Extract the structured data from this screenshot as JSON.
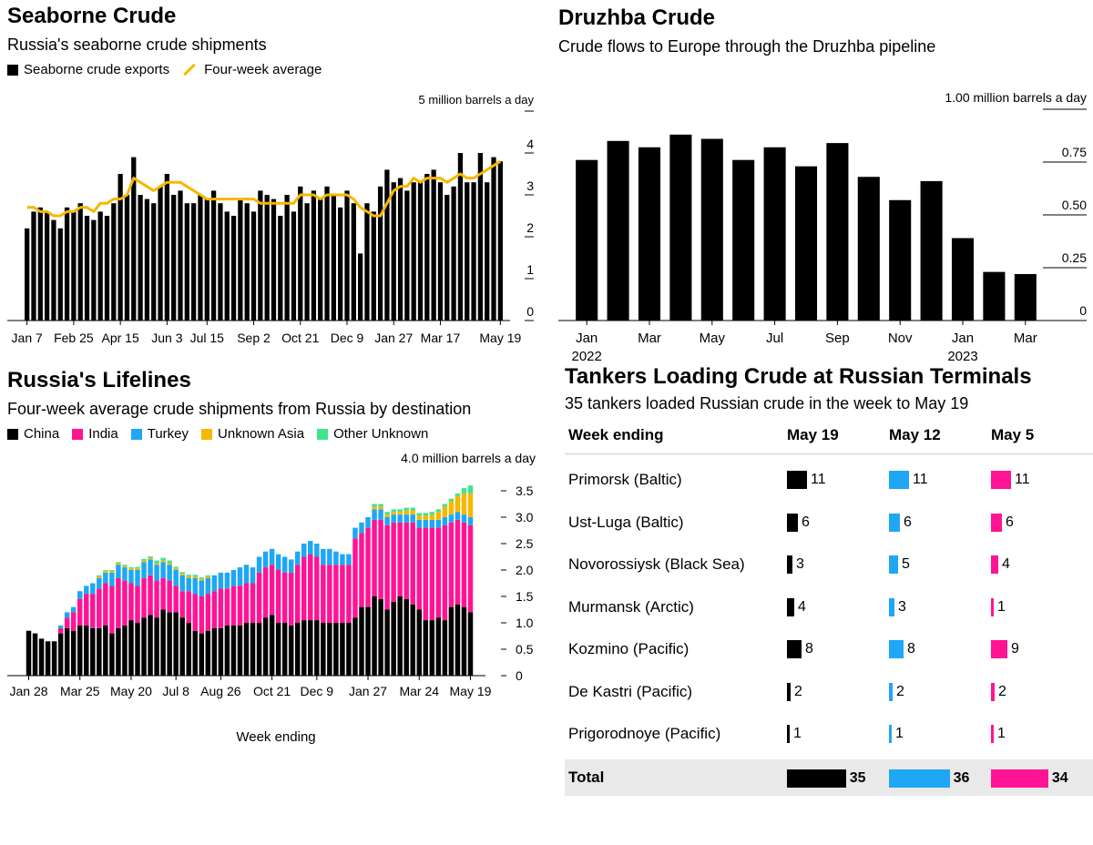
{
  "panels": {
    "seaborne": {
      "title": "Seaborne Crude",
      "subtitle": "Russia's seaborne crude shipments",
      "legend": [
        {
          "label": "Seaborne crude exports",
          "color": "#000000",
          "kind": "bar"
        },
        {
          "label": "Four-week average",
          "color": "#f5b800",
          "kind": "line"
        }
      ]
    },
    "druzhba": {
      "title": "Druzhba Crude",
      "subtitle": "Crude flows to Europe through the Druzhba pipeline"
    },
    "lifelines": {
      "title": "Russia's Lifelines",
      "subtitle": "Four-week average crude shipments from Russia by destination",
      "legend": [
        {
          "label": "China",
          "color": "#000000"
        },
        {
          "label": "India",
          "color": "#ff1493"
        },
        {
          "label": "Turkey",
          "color": "#1fa7f5"
        },
        {
          "label": "Unknown Asia",
          "color": "#f5b800"
        },
        {
          "label": "Other Unknown",
          "color": "#3ee58c"
        }
      ]
    },
    "tankers": {
      "title": "Tankers Loading Crude at Russian Terminals",
      "subtitle": "35 tankers loaded Russian crude in the week to May 19"
    }
  },
  "chart_data": [
    {
      "type": "bar",
      "id": "seaborne",
      "title": "Seaborne Crude",
      "subtitle": "Russia's seaborne crude shipments",
      "unit_label": "5 million barrels a day",
      "yticks": [
        "5 million barrels a day",
        "4",
        "3",
        "2",
        "1",
        "0"
      ],
      "ylim": [
        0,
        5
      ],
      "xtick_labels": [
        "Jan 7",
        "Feb 25",
        "Apr 15",
        "Jun 3",
        "Jul 15",
        "Sep 2",
        "Oct 21",
        "Dec 9",
        "Jan 27",
        "Mar 17",
        "May 19"
      ],
      "xtick_index": [
        0,
        7,
        14,
        21,
        27,
        34,
        41,
        48,
        55,
        62,
        71
      ],
      "series": [
        {
          "name": "Seaborne crude exports",
          "color": "#000000",
          "values": [
            2.2,
            2.6,
            2.7,
            2.6,
            2.4,
            2.2,
            2.7,
            2.6,
            2.8,
            2.5,
            2.4,
            2.6,
            2.5,
            2.8,
            3.5,
            3.0,
            3.9,
            3.0,
            2.9,
            2.8,
            3.2,
            3.5,
            3.0,
            3.1,
            2.8,
            2.8,
            3.0,
            2.9,
            3.1,
            2.8,
            2.6,
            2.5,
            2.9,
            2.8,
            2.6,
            3.1,
            3.0,
            2.9,
            2.5,
            3.0,
            2.6,
            3.2,
            2.8,
            3.1,
            2.9,
            3.2,
            3.0,
            2.7,
            3.1,
            2.8,
            1.6,
            2.8,
            2.6,
            3.2,
            3.6,
            3.3,
            3.4,
            3.1,
            3.3,
            3.3,
            3.5,
            3.6,
            3.3,
            3.0,
            3.2,
            4.0,
            3.3,
            3.3,
            4.0,
            3.3,
            3.9,
            3.8
          ]
        },
        {
          "name": "Four-week average",
          "color": "#f5b800",
          "kind": "line",
          "values": [
            2.7,
            2.7,
            2.6,
            2.6,
            2.5,
            2.5,
            2.6,
            2.6,
            2.7,
            2.7,
            2.6,
            2.8,
            2.8,
            2.9,
            2.9,
            3.0,
            3.4,
            3.3,
            3.2,
            3.1,
            3.2,
            3.3,
            3.3,
            3.3,
            3.2,
            3.1,
            3.0,
            2.9,
            2.9,
            2.9,
            2.9,
            2.9,
            2.9,
            2.9,
            2.9,
            2.8,
            2.8,
            2.8,
            2.8,
            2.8,
            2.8,
            3.0,
            3.0,
            3.0,
            2.9,
            3.0,
            3.0,
            3.0,
            3.0,
            2.9,
            2.7,
            2.6,
            2.5,
            2.5,
            2.8,
            3.1,
            3.2,
            3.2,
            3.4,
            3.3,
            3.4,
            3.4,
            3.4,
            3.3,
            3.4,
            3.5,
            3.4,
            3.4,
            3.5,
            3.6,
            3.7,
            3.8
          ]
        }
      ]
    },
    {
      "type": "bar",
      "id": "druzhba",
      "title": "Druzhba Crude",
      "subtitle": "Crude flows to Europe through the Druzhba pipeline",
      "unit_label": "1.00 million barrels a day",
      "yticks": [
        "1.00 million barrels a day",
        "0.75",
        "0.50",
        "0.25",
        "0"
      ],
      "ylim": [
        0,
        1.0
      ],
      "categories": [
        "Jan 2022",
        "Feb 2022",
        "Mar 2022",
        "Apr 2022",
        "May 2022",
        "Jun 2022",
        "Jul 2022",
        "Aug 2022",
        "Sep 2022",
        "Oct 2022",
        "Nov 2022",
        "Dec 2022",
        "Jan 2023",
        "Feb 2023",
        "Mar 2023"
      ],
      "xtick_labels": [
        {
          "index": 0,
          "label": "Jan",
          "sub": "2022"
        },
        {
          "index": 2,
          "label": "Mar",
          "sub": ""
        },
        {
          "index": 4,
          "label": "May",
          "sub": ""
        },
        {
          "index": 6,
          "label": "Jul",
          "sub": ""
        },
        {
          "index": 8,
          "label": "Sep",
          "sub": ""
        },
        {
          "index": 10,
          "label": "Nov",
          "sub": ""
        },
        {
          "index": 12,
          "label": "Jan",
          "sub": "2023"
        },
        {
          "index": 14,
          "label": "Mar",
          "sub": ""
        }
      ],
      "values": [
        0.76,
        0.85,
        0.82,
        0.88,
        0.86,
        0.76,
        0.82,
        0.73,
        0.84,
        0.68,
        0.57,
        0.66,
        0.39,
        0.23,
        0.22
      ]
    },
    {
      "type": "bar",
      "stacked": true,
      "id": "lifelines",
      "title": "Russia's Lifelines",
      "subtitle": "Four-week average crude shipments from Russia by destination",
      "unit_label": "4.0 million barrels a day",
      "xlabel": "Week ending",
      "yticks": [
        "4.0 million barrels a day",
        "3.5",
        "3.0",
        "2.5",
        "2.0",
        "1.5",
        "1.0",
        "0.5",
        "0"
      ],
      "ylim": [
        0,
        4.0
      ],
      "xtick_labels": [
        "Jan 28",
        "Mar 25",
        "May 20",
        "Jul 8",
        "Aug 26",
        "Oct 21",
        "Dec 9",
        "Jan 27",
        "Mar 24",
        "May 19"
      ],
      "xtick_index": [
        0,
        8,
        16,
        23,
        30,
        38,
        45,
        53,
        61,
        69
      ],
      "series": [
        {
          "name": "China",
          "color": "#000000",
          "values": [
            0.85,
            0.8,
            0.7,
            0.65,
            0.65,
            0.8,
            0.9,
            0.85,
            0.95,
            0.95,
            0.9,
            0.9,
            0.95,
            0.8,
            0.9,
            0.95,
            1.05,
            1.0,
            1.1,
            1.15,
            1.1,
            1.25,
            1.2,
            1.2,
            1.1,
            1.0,
            0.85,
            0.8,
            0.85,
            0.9,
            0.9,
            0.95,
            0.95,
            0.95,
            1.0,
            1.0,
            1.0,
            1.1,
            1.15,
            1.0,
            1.0,
            0.95,
            1.0,
            1.05,
            1.05,
            1.05,
            1.0,
            1.0,
            1.0,
            1.0,
            1.0,
            1.1,
            1.3,
            1.3,
            1.5,
            1.45,
            1.25,
            1.4,
            1.5,
            1.45,
            1.35,
            1.25,
            1.05,
            1.05,
            1.1,
            1.05,
            1.3,
            1.35,
            1.3,
            1.2
          ]
        },
        {
          "name": "India",
          "color": "#ff1493",
          "values": [
            0,
            0,
            0,
            0,
            0,
            0.1,
            0.2,
            0.35,
            0.5,
            0.6,
            0.65,
            0.75,
            0.8,
            0.9,
            0.95,
            0.85,
            0.7,
            0.7,
            0.75,
            0.75,
            0.7,
            0.6,
            0.6,
            0.5,
            0.5,
            0.6,
            0.7,
            0.7,
            0.7,
            0.7,
            0.75,
            0.7,
            0.75,
            0.75,
            0.75,
            0.75,
            0.95,
            0.95,
            0.95,
            1.0,
            0.95,
            1.0,
            1.1,
            1.2,
            1.25,
            1.2,
            1.1,
            1.1,
            1.1,
            1.1,
            1.1,
            1.5,
            1.4,
            1.5,
            1.45,
            1.5,
            1.6,
            1.5,
            1.4,
            1.45,
            1.55,
            1.55,
            1.75,
            1.75,
            1.7,
            1.8,
            1.6,
            1.6,
            1.6,
            1.65
          ]
        },
        {
          "name": "Turkey",
          "color": "#1fa7f5",
          "values": [
            0,
            0,
            0,
            0,
            0,
            0.05,
            0.1,
            0.1,
            0.15,
            0.15,
            0.2,
            0.2,
            0.2,
            0.25,
            0.25,
            0.25,
            0.25,
            0.3,
            0.3,
            0.3,
            0.3,
            0.3,
            0.3,
            0.3,
            0.3,
            0.25,
            0.3,
            0.3,
            0.3,
            0.3,
            0.3,
            0.3,
            0.3,
            0.35,
            0.35,
            0.3,
            0.3,
            0.3,
            0.3,
            0.3,
            0.3,
            0.25,
            0.25,
            0.25,
            0.25,
            0.25,
            0.3,
            0.3,
            0.25,
            0.2,
            0.2,
            0.2,
            0.2,
            0.2,
            0.2,
            0.2,
            0.15,
            0.15,
            0.15,
            0.15,
            0.15,
            0.15,
            0.15,
            0.15,
            0.15,
            0.15,
            0.15,
            0.15,
            0.15,
            0.15
          ]
        },
        {
          "name": "Unknown Asia",
          "color": "#f5b800",
          "values": [
            0,
            0,
            0,
            0,
            0,
            0,
            0,
            0,
            0,
            0,
            0,
            0.03,
            0.03,
            0.03,
            0.03,
            0.03,
            0.03,
            0.03,
            0.03,
            0.03,
            0.03,
            0.03,
            0.03,
            0.03,
            0.03,
            0.03,
            0.03,
            0.03,
            0.03,
            0,
            0,
            0,
            0,
            0,
            0,
            0,
            0,
            0,
            0,
            0,
            0,
            0,
            0,
            0,
            0,
            0,
            0,
            0,
            0,
            0,
            0,
            0,
            0,
            0,
            0.05,
            0.05,
            0.05,
            0.05,
            0.05,
            0.08,
            0.08,
            0.08,
            0.08,
            0.1,
            0.15,
            0.2,
            0.25,
            0.3,
            0.4,
            0.45
          ]
        },
        {
          "name": "Other Unknown",
          "color": "#3ee58c",
          "values": [
            0,
            0,
            0,
            0,
            0,
            0,
            0,
            0,
            0,
            0,
            0,
            0.02,
            0.02,
            0.02,
            0.02,
            0.02,
            0.02,
            0.03,
            0.03,
            0.03,
            0.05,
            0.05,
            0.05,
            0.03,
            0.03,
            0.03,
            0.03,
            0.03,
            0.02,
            0,
            0,
            0,
            0,
            0,
            0,
            0,
            0,
            0,
            0,
            0,
            0,
            0,
            0,
            0,
            0,
            0,
            0,
            0,
            0,
            0,
            0,
            0,
            0,
            0,
            0.05,
            0.05,
            0.05,
            0.05,
            0.05,
            0.05,
            0.05,
            0.05,
            0.05,
            0.05,
            0.05,
            0.05,
            0.05,
            0.05,
            0.1,
            0.15
          ]
        }
      ]
    },
    {
      "type": "table",
      "id": "tankers",
      "title": "Tankers Loading Crude at Russian Terminals",
      "subtitle": "35 tankers loaded Russian crude in the week to May 19",
      "columns": [
        "Week ending",
        "May 19",
        "May 12",
        "May 5"
      ],
      "column_colors": [
        "#000000",
        "#1fa7f5",
        "#ff1493"
      ],
      "rows": [
        {
          "name": "Primorsk (Baltic)",
          "values": [
            11,
            11,
            11
          ]
        },
        {
          "name": "Ust-Luga (Baltic)",
          "values": [
            6,
            6,
            6
          ]
        },
        {
          "name": "Novorossiysk (Black Sea)",
          "values": [
            3,
            5,
            4
          ]
        },
        {
          "name": "Murmansk (Arctic)",
          "values": [
            4,
            3,
            1
          ]
        },
        {
          "name": "Kozmino (Pacific)",
          "values": [
            8,
            8,
            9
          ]
        },
        {
          "name": "De Kastri (Pacific)",
          "values": [
            2,
            2,
            2
          ]
        },
        {
          "name": "Prigorodnoye (Pacific)",
          "values": [
            1,
            1,
            1
          ]
        }
      ],
      "total": {
        "name": "Total",
        "values": [
          35,
          36,
          34
        ]
      }
    }
  ]
}
